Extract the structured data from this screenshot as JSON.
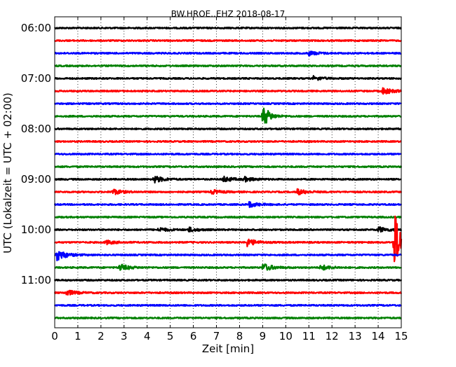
{
  "chart_data": {
    "type": "line",
    "title": "BW.HROE..EHZ 2018-08-17",
    "xlabel": "Zeit  [min]",
    "ylabel": "UTC (Lokalzeit = UTC + 02:00)",
    "xlim": [
      0,
      15
    ],
    "x_ticks": [
      "0",
      "1",
      "2",
      "3",
      "4",
      "5",
      "6",
      "7",
      "8",
      "9",
      "10",
      "11",
      "12",
      "13",
      "14",
      "15"
    ],
    "y_ticks": [
      "06:00",
      "07:00",
      "08:00",
      "09:00",
      "10:00",
      "11:00"
    ],
    "grid": "vertical dotted at each minute",
    "trace_start_times": [
      "06:00",
      "06:15",
      "06:30",
      "06:45",
      "07:00",
      "07:15",
      "07:30",
      "07:45",
      "08:00",
      "08:15",
      "08:30",
      "08:45",
      "09:00",
      "09:15",
      "09:30",
      "09:45",
      "10:00",
      "10:15",
      "10:30",
      "10:45",
      "11:00",
      "11:15",
      "11:30",
      "11:45"
    ],
    "trace_colors": [
      "#000000",
      "#ff0000",
      "#0000ff",
      "#008000"
    ],
    "traces_per_hour": 4,
    "events": [
      {
        "trace": 2,
        "x": 11.0,
        "amp": 3,
        "color": "blue"
      },
      {
        "trace": 4,
        "x": 11.2,
        "amp": 3,
        "color": "black"
      },
      {
        "trace": 5,
        "x": 14.2,
        "amp": 5,
        "color": "red"
      },
      {
        "trace": 7,
        "x": 9.0,
        "amp": 18,
        "color": "green"
      },
      {
        "trace": 12,
        "x": 4.3,
        "amp": 5,
        "color": "black"
      },
      {
        "trace": 12,
        "x": 7.3,
        "amp": 4,
        "color": "black"
      },
      {
        "trace": 12,
        "x": 8.2,
        "amp": 3,
        "color": "black"
      },
      {
        "trace": 13,
        "x": 2.5,
        "amp": 4,
        "color": "red"
      },
      {
        "trace": 13,
        "x": 6.8,
        "amp": 3,
        "color": "red"
      },
      {
        "trace": 13,
        "x": 10.5,
        "amp": 4,
        "color": "red"
      },
      {
        "trace": 14,
        "x": 8.4,
        "amp": 4,
        "color": "blue"
      },
      {
        "trace": 16,
        "x": 4.5,
        "amp": 3,
        "color": "black"
      },
      {
        "trace": 16,
        "x": 5.8,
        "amp": 3,
        "color": "black"
      },
      {
        "trace": 16,
        "x": 14.0,
        "amp": 4,
        "color": "black"
      },
      {
        "trace": 17,
        "x": 2.2,
        "amp": 3,
        "color": "red"
      },
      {
        "trace": 17,
        "x": 8.3,
        "amp": 6,
        "color": "red"
      },
      {
        "trace": 17,
        "x": 14.7,
        "amp": 45,
        "color": "red"
      },
      {
        "trace": 18,
        "x": 0.1,
        "amp": 8,
        "color": "blue"
      },
      {
        "trace": 19,
        "x": 2.8,
        "amp": 5,
        "color": "green"
      },
      {
        "trace": 19,
        "x": 9.0,
        "amp": 6,
        "color": "green"
      },
      {
        "trace": 19,
        "x": 11.5,
        "amp": 4,
        "color": "green"
      },
      {
        "trace": 21,
        "x": 0.5,
        "amp": 4,
        "color": "red"
      }
    ]
  }
}
